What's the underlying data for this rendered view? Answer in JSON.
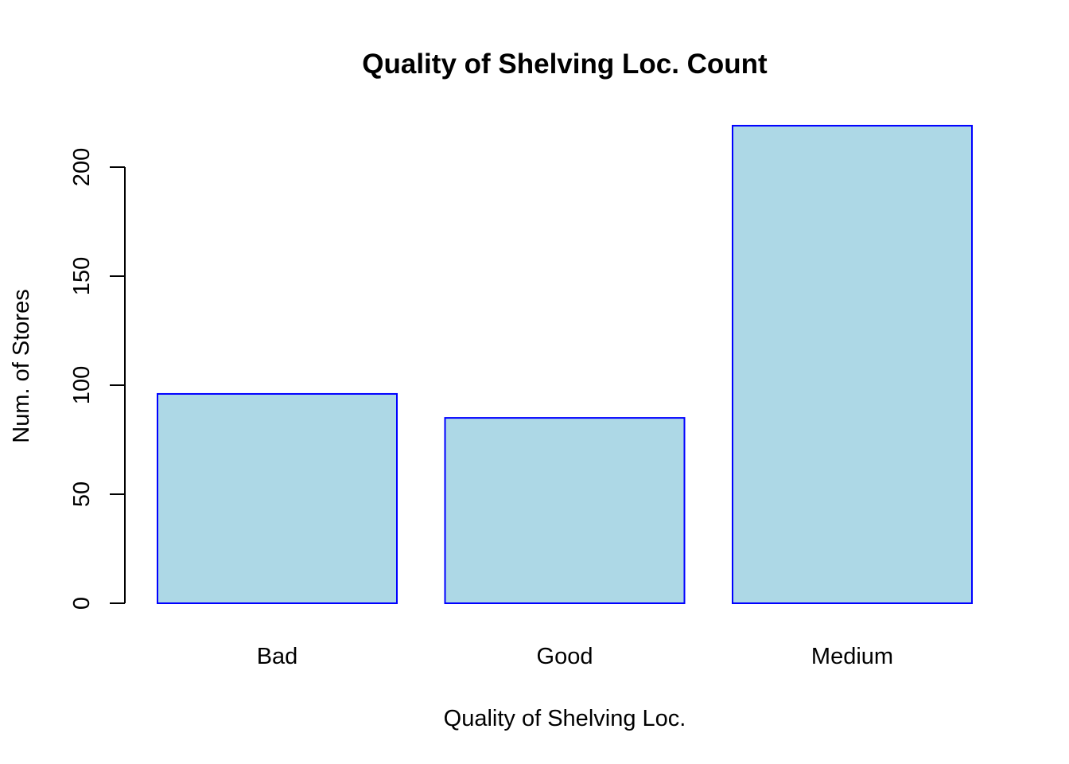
{
  "chart_data": {
    "type": "bar",
    "title": "Quality of Shelving Loc. Count",
    "xlabel": "Quality of Shelving Loc.",
    "ylabel": "Num. of Stores",
    "categories": [
      "Bad",
      "Good",
      "Medium"
    ],
    "values": [
      96,
      85,
      219
    ],
    "ylim": [
      0,
      200
    ],
    "yticks": [
      0,
      50,
      100,
      150,
      200
    ],
    "grid": false,
    "legend": "none",
    "colors": {
      "bar_fill": "#add8e6",
      "bar_stroke": "#0000ff",
      "axis": "#000000"
    }
  }
}
